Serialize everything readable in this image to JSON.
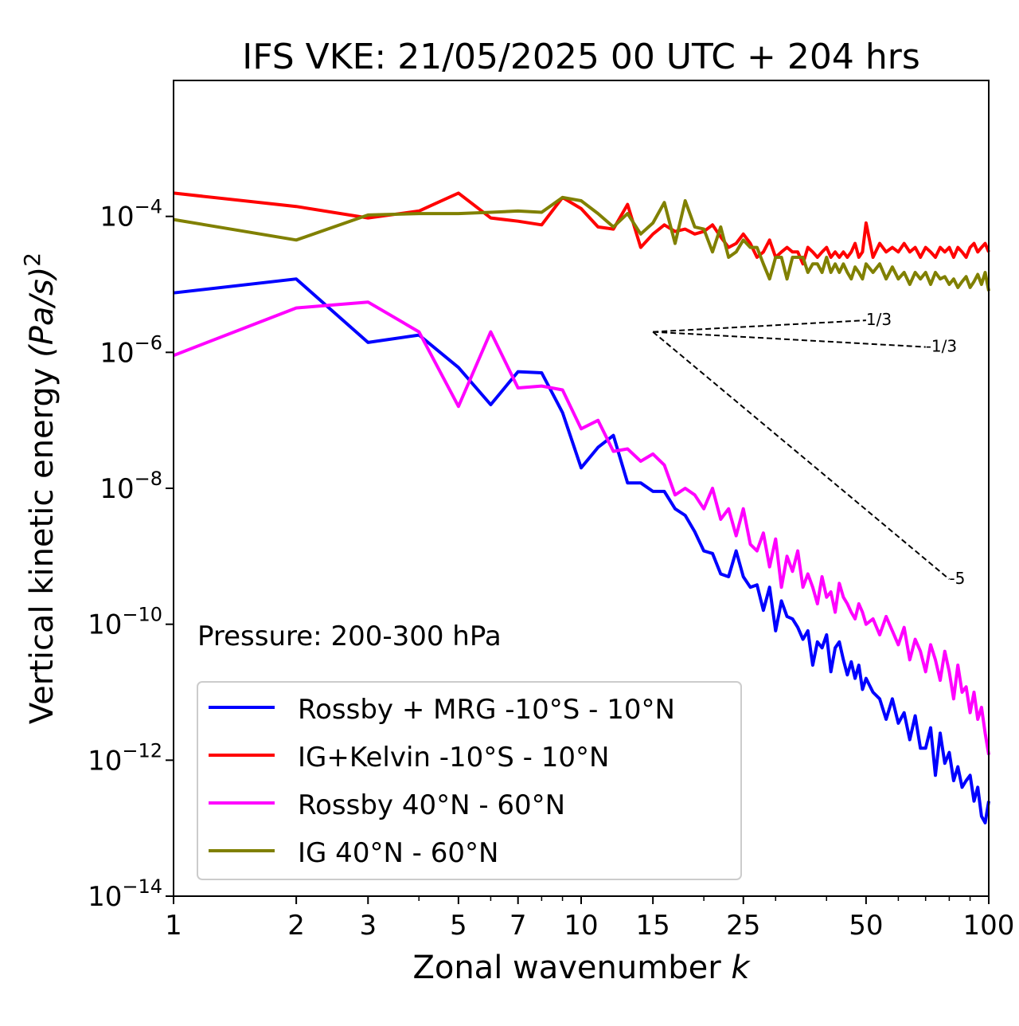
{
  "chart_data": {
    "type": "line",
    "title": "IFS VKE: 21/05/2025 00 UTC + 204 hrs",
    "xlabel": "Zonal wavenumber",
    "xlabel_var": "k",
    "ylabel": "Vertical kinetic energy",
    "ylabel_unit": "(Pa/s)",
    "ylabel_exp": "2",
    "xscale": "log",
    "yscale": "log",
    "xlim": [
      1,
      100
    ],
    "ylim": [
      1e-14,
      0.01
    ],
    "x_ticks": [
      1,
      2,
      3,
      5,
      7,
      10,
      15,
      25,
      50,
      100
    ],
    "x_tick_labels": [
      "1",
      "2",
      "3",
      "5",
      "7",
      "10",
      "15",
      "25",
      "50",
      "100"
    ],
    "y_ticks": [
      1e-14,
      1e-12,
      1e-10,
      1e-08,
      1e-06,
      0.0001
    ],
    "y_tick_exponents": [
      "−14",
      "−12",
      "−10",
      "−8",
      "−6",
      "−4"
    ],
    "y_tick_base": "10",
    "annotation": "Pressure: 200-300 hPa",
    "legend_position": "lower-left",
    "grid": false,
    "series": [
      {
        "name": "Rossby + MRG -10°S - 10°N",
        "color": "#0000ff",
        "x": [
          1,
          2,
          3,
          4,
          5,
          6,
          7,
          8,
          9,
          10,
          11,
          12,
          13,
          14,
          15,
          16,
          17,
          18,
          19,
          20,
          21,
          22,
          23,
          24,
          25,
          26,
          27,
          28,
          29,
          30,
          31,
          32,
          33,
          34,
          35,
          36,
          37,
          38,
          39,
          40,
          41,
          42,
          43,
          44,
          45,
          46,
          47,
          48,
          49,
          50,
          52,
          54,
          56,
          58,
          60,
          62,
          64,
          66,
          68,
          70,
          72,
          74,
          76,
          78,
          80,
          82,
          84,
          86,
          88,
          90,
          92,
          94,
          96,
          98,
          100
        ],
        "y": [
          7.5e-06,
          1.2e-05,
          1.4e-06,
          1.8e-06,
          6e-07,
          1.7e-07,
          5.2e-07,
          5e-07,
          1.3e-07,
          2e-08,
          4e-08,
          6e-08,
          1.2e-08,
          1.2e-08,
          9e-09,
          9e-09,
          5e-09,
          4e-09,
          2.3e-09,
          1.2e-09,
          1.1e-09,
          5.5e-10,
          5e-10,
          1.2e-09,
          5e-10,
          3.5e-10,
          3.8e-10,
          1.6e-10,
          3.5e-10,
          8e-11,
          2.2e-10,
          1.3e-10,
          1.2e-10,
          9e-11,
          6e-11,
          8e-11,
          2.5e-11,
          5.5e-11,
          4.5e-11,
          7e-11,
          2e-11,
          4.5e-11,
          5.5e-11,
          3e-11,
          1.8e-11,
          2.8e-11,
          1.6e-11,
          2.5e-11,
          1.1e-11,
          1.6e-11,
          1e-11,
          8e-12,
          4e-12,
          8e-12,
          3.5e-12,
          5e-12,
          2e-12,
          4.5e-12,
          1.5e-12,
          1.5e-12,
          3e-12,
          6e-13,
          2.5e-12,
          9e-13,
          1.3e-12,
          5e-13,
          8e-13,
          4e-13,
          5e-13,
          6e-13,
          2.5e-13,
          4e-13,
          1.5e-13,
          1.2e-13,
          2.5e-13
        ]
      },
      {
        "name": "IG+Kelvin -10°S - 10°N",
        "color": "#ff0000",
        "x": [
          1,
          2,
          3,
          4,
          5,
          6,
          7,
          8,
          9,
          10,
          11,
          12,
          13,
          14,
          15,
          16,
          17,
          18,
          19,
          20,
          21,
          22,
          23,
          24,
          25,
          26,
          27,
          28,
          29,
          30,
          31,
          32,
          33,
          34,
          35,
          36,
          37,
          38,
          39,
          40,
          41,
          42,
          43,
          44,
          45,
          46,
          47,
          48,
          49,
          50,
          52,
          54,
          56,
          58,
          60,
          62,
          64,
          66,
          68,
          70,
          72,
          74,
          76,
          78,
          80,
          82,
          84,
          86,
          88,
          90,
          92,
          94,
          96,
          98,
          100
        ],
        "y": [
          0.00022,
          0.00014,
          9.5e-05,
          0.00012,
          0.00022,
          9.5e-05,
          8.5e-05,
          7.5e-05,
          0.00019,
          0.00013,
          7e-05,
          6.5e-05,
          0.00015,
          3.5e-05,
          5.5e-05,
          7.5e-05,
          6e-05,
          6.5e-05,
          5.5e-05,
          6e-05,
          7.5e-05,
          5e-05,
          3.5e-05,
          4e-05,
          5.5e-05,
          4e-05,
          2.5e-05,
          3e-05,
          4.5e-05,
          2.5e-05,
          3e-05,
          3.5e-05,
          3e-05,
          3e-05,
          2e-05,
          3.5e-05,
          3e-05,
          2.5e-05,
          3e-05,
          3.5e-05,
          2.5e-05,
          3e-05,
          2.5e-05,
          3e-05,
          2.5e-05,
          3e-05,
          4e-05,
          2.5e-05,
          3e-05,
          8e-05,
          2.5e-05,
          4e-05,
          3e-05,
          3.5e-05,
          3e-05,
          4e-05,
          3e-05,
          3.5e-05,
          2.5e-05,
          3.5e-05,
          3e-05,
          2.5e-05,
          3.5e-05,
          3e-05,
          3.5e-05,
          2.5e-05,
          3.5e-05,
          3e-05,
          2.5e-05,
          3.5e-05,
          4e-05,
          3e-05,
          3.5e-05,
          4e-05,
          3e-05
        ]
      },
      {
        "name": "Rossby 40°N - 60°N",
        "color": "#ff00ff",
        "x": [
          1,
          2,
          3,
          4,
          5,
          6,
          7,
          8,
          9,
          10,
          11,
          12,
          13,
          14,
          15,
          16,
          17,
          18,
          19,
          20,
          21,
          22,
          23,
          24,
          25,
          26,
          27,
          28,
          29,
          30,
          31,
          32,
          33,
          34,
          35,
          36,
          37,
          38,
          39,
          40,
          41,
          42,
          43,
          44,
          45,
          46,
          47,
          48,
          49,
          50,
          52,
          54,
          56,
          58,
          60,
          62,
          64,
          66,
          68,
          70,
          72,
          74,
          76,
          78,
          80,
          82,
          84,
          86,
          88,
          90,
          92,
          94,
          96,
          98,
          100
        ],
        "y": [
          9e-07,
          4.5e-06,
          5.5e-06,
          2e-06,
          1.6e-07,
          2e-06,
          3e-07,
          3.2e-07,
          2.8e-07,
          7.5e-08,
          1e-07,
          3.5e-08,
          3.8e-08,
          2.5e-08,
          3.2e-08,
          2.2e-08,
          8e-09,
          1e-08,
          8e-09,
          5e-09,
          1e-08,
          3.5e-09,
          5e-09,
          2e-09,
          5e-09,
          1.5e-09,
          1.2e-09,
          2.2e-09,
          7e-10,
          1.8e-09,
          3.5e-10,
          1e-09,
          6e-10,
          1.2e-09,
          3.5e-10,
          5.5e-10,
          3.5e-10,
          2e-10,
          5e-10,
          2.5e-10,
          3e-10,
          1.5e-10,
          4e-10,
          2.5e-10,
          2e-10,
          1.5e-10,
          1.2e-10,
          2e-10,
          1.5e-10,
          1e-10,
          1.2e-10,
          7e-11,
          1.3e-10,
          8e-11,
          5e-11,
          9e-11,
          3e-11,
          6e-11,
          4e-11,
          2e-11,
          5e-11,
          3e-11,
          1.5e-11,
          4e-11,
          2e-11,
          8e-12,
          2.5e-11,
          1e-11,
          1.2e-11,
          5e-12,
          1e-11,
          4e-12,
          6e-12,
          2.5e-12,
          1.2e-12
        ]
      },
      {
        "name": "IG 40°N - 60°N",
        "color": "#808000",
        "x": [
          1,
          2,
          3,
          4,
          5,
          6,
          7,
          8,
          9,
          10,
          11,
          12,
          13,
          14,
          15,
          16,
          17,
          18,
          19,
          20,
          21,
          22,
          23,
          24,
          25,
          26,
          27,
          28,
          29,
          30,
          31,
          32,
          33,
          34,
          35,
          36,
          37,
          38,
          39,
          40,
          41,
          42,
          43,
          44,
          45,
          46,
          47,
          48,
          49,
          50,
          52,
          54,
          56,
          58,
          60,
          62,
          64,
          66,
          68,
          70,
          72,
          74,
          76,
          78,
          80,
          82,
          84,
          86,
          88,
          90,
          92,
          94,
          96,
          98,
          100
        ],
        "y": [
          9e-05,
          4.5e-05,
          0.000105,
          0.00011,
          0.00011,
          0.000115,
          0.00012,
          0.000115,
          0.00019,
          0.00017,
          0.00011,
          7e-05,
          0.00011,
          5.5e-05,
          8e-05,
          0.00016,
          4e-05,
          0.00017,
          7e-05,
          6.5e-05,
          3e-05,
          7e-05,
          2.5e-05,
          3e-05,
          4.5e-05,
          3.5e-05,
          3.5e-05,
          2e-05,
          1.2e-05,
          2.5e-05,
          2.5e-05,
          1.2e-05,
          2.5e-05,
          2.5e-05,
          2.5e-05,
          1.5e-05,
          2e-05,
          2e-05,
          1.5e-05,
          2.5e-05,
          1.5e-05,
          2e-05,
          1.5e-05,
          2e-05,
          1.5e-05,
          1.2e-05,
          1.8e-05,
          1.5e-05,
          1.2e-05,
          2e-05,
          1.5e-05,
          2e-05,
          1.2e-05,
          1.8e-05,
          1.2e-05,
          1.5e-05,
          1e-05,
          1.5e-05,
          1.2e-05,
          1.5e-05,
          1e-05,
          1.5e-05,
          1.2e-05,
          1.3e-05,
          1e-05,
          1.2e-05,
          9e-06,
          1.1e-05,
          1.3e-05,
          9e-06,
          1.1e-05,
          1.4e-05,
          1e-05,
          1.5e-05,
          8e-06
        ]
      }
    ],
    "reference_lines": [
      {
        "slope_label": "1/3",
        "x": [
          15,
          50
        ],
        "y": [
          2e-06,
          2.96e-06
        ]
      },
      {
        "slope_label": "-1/3",
        "x": [
          15,
          70
        ],
        "y": [
          2e-06,
          1.2e-06
        ]
      },
      {
        "slope_label": "-5",
        "x": [
          15,
          80
        ],
        "y": [
          2e-06,
          4.6e-10
        ]
      }
    ]
  }
}
